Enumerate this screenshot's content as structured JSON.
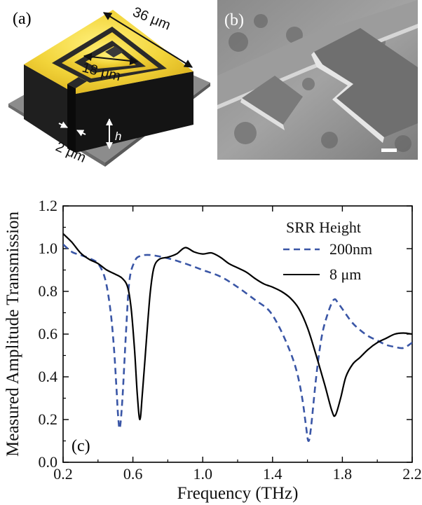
{
  "panels": {
    "a_label": "(a)",
    "b_label": "(b)",
    "c_label": "(c)"
  },
  "schematic": {
    "outer_dim": "36 μm",
    "inner_dim": "18 μm",
    "gap_dim": "2 μm",
    "height_label": "h",
    "colors": {
      "top": "#f2d43a",
      "side": "#1c1c1c",
      "substrate": "#8c8c8c"
    }
  },
  "chart_data": {
    "type": "line",
    "xlabel": "Frequency (THz)",
    "ylabel": "Measured Amplitude Transmission",
    "xlim": [
      0.2,
      2.2
    ],
    "ylim": [
      0.0,
      1.2
    ],
    "xticks": [
      "0.2",
      "0.6",
      "1.0",
      "1.4",
      "1.8",
      "2.2"
    ],
    "yticks": [
      "0.0",
      "0.2",
      "0.4",
      "0.6",
      "0.8",
      "1.0",
      "1.2"
    ],
    "legend_title": "SRR Height",
    "legend_position": "top-right",
    "series": [
      {
        "name": "200nm",
        "style": "dashed",
        "color": "#3a56a6",
        "points": [
          [
            0.2,
            1.02
          ],
          [
            0.25,
            0.985
          ],
          [
            0.3,
            0.97
          ],
          [
            0.35,
            0.955
          ],
          [
            0.4,
            0.93
          ],
          [
            0.44,
            0.86
          ],
          [
            0.47,
            0.72
          ],
          [
            0.49,
            0.55
          ],
          [
            0.505,
            0.36
          ],
          [
            0.515,
            0.22
          ],
          [
            0.525,
            0.16
          ],
          [
            0.54,
            0.3
          ],
          [
            0.56,
            0.6
          ],
          [
            0.58,
            0.85
          ],
          [
            0.61,
            0.94
          ],
          [
            0.64,
            0.965
          ],
          [
            0.7,
            0.97
          ],
          [
            0.8,
            0.955
          ],
          [
            0.9,
            0.93
          ],
          [
            1.0,
            0.9
          ],
          [
            1.1,
            0.87
          ],
          [
            1.2,
            0.82
          ],
          [
            1.3,
            0.76
          ],
          [
            1.38,
            0.71
          ],
          [
            1.44,
            0.63
          ],
          [
            1.5,
            0.52
          ],
          [
            1.54,
            0.42
          ],
          [
            1.57,
            0.3
          ],
          [
            1.59,
            0.18
          ],
          [
            1.605,
            0.1
          ],
          [
            1.62,
            0.16
          ],
          [
            1.65,
            0.4
          ],
          [
            1.68,
            0.58
          ],
          [
            1.71,
            0.68
          ],
          [
            1.75,
            0.76
          ],
          [
            1.78,
            0.74
          ],
          [
            1.85,
            0.66
          ],
          [
            1.9,
            0.62
          ],
          [
            1.95,
            0.59
          ],
          [
            2.0,
            0.57
          ],
          [
            2.05,
            0.55
          ],
          [
            2.1,
            0.54
          ],
          [
            2.15,
            0.535
          ],
          [
            2.2,
            0.56
          ]
        ]
      },
      {
        "name": "8 μm",
        "style": "solid",
        "color": "#000000",
        "points": [
          [
            0.2,
            1.07
          ],
          [
            0.25,
            1.03
          ],
          [
            0.3,
            0.98
          ],
          [
            0.35,
            0.95
          ],
          [
            0.4,
            0.93
          ],
          [
            0.45,
            0.9
          ],
          [
            0.5,
            0.88
          ],
          [
            0.54,
            0.86
          ],
          [
            0.57,
            0.82
          ],
          [
            0.59,
            0.72
          ],
          [
            0.61,
            0.52
          ],
          [
            0.625,
            0.32
          ],
          [
            0.64,
            0.2
          ],
          [
            0.655,
            0.33
          ],
          [
            0.68,
            0.6
          ],
          [
            0.7,
            0.8
          ],
          [
            0.72,
            0.91
          ],
          [
            0.75,
            0.95
          ],
          [
            0.8,
            0.96
          ],
          [
            0.85,
            0.975
          ],
          [
            0.9,
            1.005
          ],
          [
            0.95,
            0.985
          ],
          [
            1.0,
            0.975
          ],
          [
            1.05,
            0.98
          ],
          [
            1.1,
            0.96
          ],
          [
            1.15,
            0.93
          ],
          [
            1.2,
            0.91
          ],
          [
            1.25,
            0.89
          ],
          [
            1.3,
            0.86
          ],
          [
            1.35,
            0.835
          ],
          [
            1.4,
            0.82
          ],
          [
            1.45,
            0.8
          ],
          [
            1.5,
            0.77
          ],
          [
            1.55,
            0.72
          ],
          [
            1.6,
            0.63
          ],
          [
            1.65,
            0.5
          ],
          [
            1.7,
            0.36
          ],
          [
            1.74,
            0.24
          ],
          [
            1.76,
            0.22
          ],
          [
            1.79,
            0.3
          ],
          [
            1.82,
            0.4
          ],
          [
            1.86,
            0.46
          ],
          [
            1.9,
            0.49
          ],
          [
            1.95,
            0.53
          ],
          [
            2.0,
            0.56
          ],
          [
            2.05,
            0.58
          ],
          [
            2.1,
            0.6
          ],
          [
            2.15,
            0.605
          ],
          [
            2.2,
            0.6
          ]
        ]
      }
    ]
  }
}
